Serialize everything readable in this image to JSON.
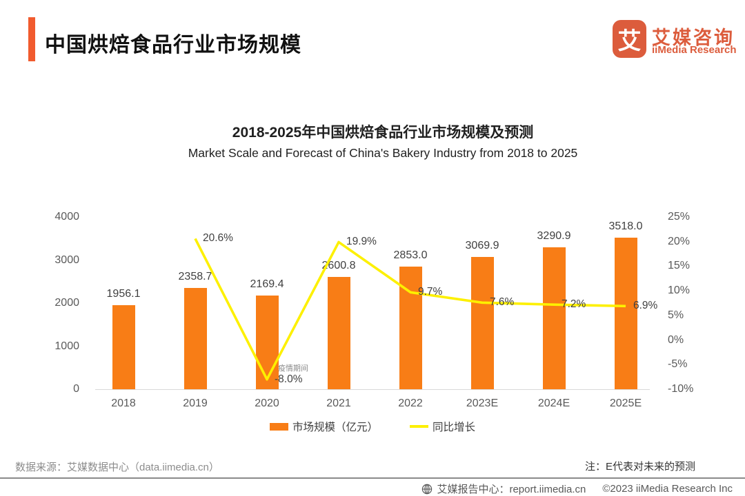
{
  "header": {
    "title": "中国烘焙食品行业市场规模"
  },
  "logo": {
    "glyph": "艾",
    "name_cn": "艾媒咨询",
    "name_en": "iiMedia Research",
    "color": "#DC5C3C"
  },
  "chart_data": {
    "type": "bar",
    "title": "2018-2025年中国烘焙食品行业市场规模及预测",
    "subtitle": "Market Scale and Forecast of China's Bakery Industry from 2018 to 2025",
    "categories": [
      "2018",
      "2019",
      "2020",
      "2021",
      "2022",
      "2023E",
      "2024E",
      "2025E"
    ],
    "series": [
      {
        "name": "市场规模（亿元）",
        "type": "bar",
        "color": "#F87D16",
        "values": [
          1956.1,
          2358.7,
          2169.4,
          2600.8,
          2853.0,
          3069.9,
          3290.9,
          3518.0
        ]
      },
      {
        "name": "同比增长",
        "type": "line",
        "color": "#FDF000",
        "values": [
          null,
          20.6,
          -8.0,
          19.9,
          9.7,
          7.6,
          7.2,
          6.9
        ]
      }
    ],
    "bar_labels": [
      "1956.1",
      "2358.7",
      "2169.4",
      "2600.8",
      "2853.0",
      "3069.9",
      "3290.9",
      "3518.0"
    ],
    "line_labels": [
      null,
      "20.6%",
      "-8.0%",
      "19.9%",
      "9.7%",
      "7.6%",
      "7.2%",
      "6.9%"
    ],
    "left_axis": {
      "ticks": [
        "0",
        "1000",
        "2000",
        "3000",
        "4000"
      ],
      "min": 0,
      "max": 4000
    },
    "right_axis": {
      "ticks": [
        "25%",
        "20%",
        "15%",
        "10%",
        "5%",
        "0%",
        "-5%",
        "-10%"
      ],
      "min": -10,
      "max": 25
    },
    "annotation": {
      "text": "疫情期间",
      "attached_to": "2020"
    },
    "legend": [
      {
        "label": "市场规模（亿元）",
        "marker": "rect",
        "color": "#F87D16"
      },
      {
        "label": "同比增长",
        "marker": "line",
        "color": "#FDF000"
      }
    ],
    "grid": false,
    "legend_position": "bottom"
  },
  "footer": {
    "source": "数据来源：艾媒数据中心（data.iimedia.cn）",
    "note": "注：E代表对未来的预测",
    "report_center": "艾媒报告中心：report.iimedia.cn",
    "copyright": "©2023 iiMedia Research  Inc"
  }
}
